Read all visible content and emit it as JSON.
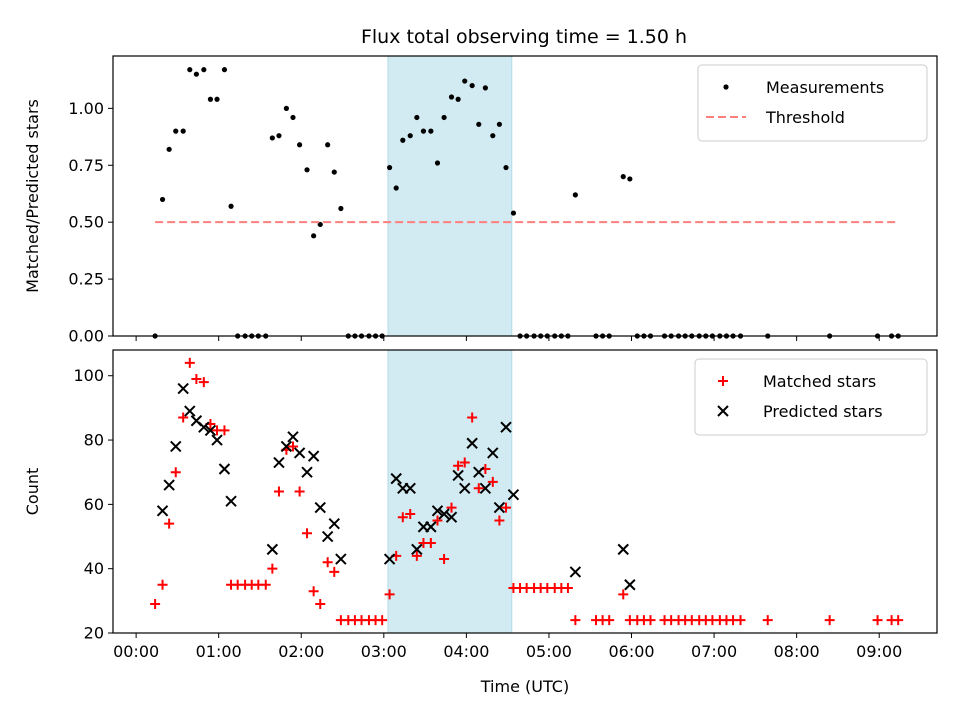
{
  "chart_data": [
    {
      "type": "scatter",
      "title": "Flux total observing time = 1.50 h",
      "xlabel": "",
      "ylabel": "Matched/Predicted stars",
      "xlim": [
        -0.28,
        9.7
      ],
      "ylim": [
        0,
        1.23
      ],
      "yticks": [
        0,
        0.25,
        0.5,
        0.75,
        1.0
      ],
      "ytick_labels": [
        "0.00",
        "0.25",
        "0.50",
        "0.75",
        "1.00"
      ],
      "legend_position": "top-right",
      "highlight_span": {
        "x0": 3.05,
        "x1": 4.55,
        "color": "#add8e6"
      },
      "series": [
        {
          "name": "Measurements",
          "style": "dots",
          "color": "#000000",
          "x": [
            0.23,
            0.32,
            0.4,
            0.48,
            0.57,
            0.65,
            0.73,
            0.82,
            0.9,
            0.98,
            1.07,
            1.15,
            1.23,
            1.32,
            1.4,
            1.48,
            1.57,
            1.65,
            1.73,
            1.82,
            1.9,
            1.98,
            2.07,
            2.15,
            2.23,
            2.32,
            2.4,
            2.48,
            2.57,
            2.65,
            2.73,
            2.82,
            2.9,
            2.98,
            3.07,
            3.15,
            3.23,
            3.32,
            3.4,
            3.48,
            3.57,
            3.65,
            3.73,
            3.82,
            3.9,
            3.98,
            4.07,
            4.15,
            4.23,
            4.32,
            4.4,
            4.48,
            4.57,
            4.65,
            4.73,
            4.82,
            4.9,
            4.98,
            5.07,
            5.15,
            5.23,
            5.32,
            5.57,
            5.65,
            5.73,
            5.9,
            5.98,
            6.07,
            6.15,
            6.23,
            6.4,
            6.48,
            6.57,
            6.65,
            6.73,
            6.82,
            6.9,
            6.98,
            7.07,
            7.15,
            7.23,
            7.32,
            7.65,
            8.4,
            8.98,
            9.15,
            9.23
          ],
          "y": [
            0,
            0.6,
            0.82,
            0.9,
            0.9,
            1.17,
            1.15,
            1.17,
            1.04,
            1.04,
            1.17,
            0.57,
            0,
            0,
            0,
            0,
            0,
            0.87,
            0.88,
            1,
            0.96,
            0.84,
            0.73,
            0.44,
            0.49,
            0.84,
            0.72,
            0.56,
            0,
            0,
            0,
            0,
            0,
            0,
            0.74,
            0.65,
            0.86,
            0.88,
            0.96,
            0.9,
            0.9,
            0.76,
            0.96,
            1.05,
            1.04,
            1.12,
            1.1,
            0.93,
            1.09,
            0.88,
            0.93,
            0.74,
            0.54,
            0,
            0,
            0,
            0,
            0,
            0,
            0,
            0,
            0.62,
            0,
            0,
            0,
            0.7,
            0.69,
            0,
            0,
            0,
            0,
            0,
            0,
            0,
            0,
            0,
            0,
            0,
            0,
            0,
            0,
            0,
            0,
            0,
            0,
            0,
            0
          ]
        },
        {
          "name": "Threshold",
          "style": "dashed",
          "color": "#ff7f7f",
          "x": [
            0.23,
            9.23
          ],
          "y": [
            0.5,
            0.5
          ]
        }
      ]
    },
    {
      "type": "scatter",
      "title": "",
      "xlabel": "Time (UTC)",
      "ylabel": "Count",
      "xlim": [
        -0.28,
        9.7
      ],
      "ylim": [
        20,
        108
      ],
      "yticks": [
        20,
        40,
        60,
        80,
        100
      ],
      "ytick_labels": [
        "20",
        "40",
        "60",
        "80",
        "100"
      ],
      "xticks": [
        0,
        1,
        2,
        3,
        4,
        5,
        6,
        7,
        8,
        9
      ],
      "xtick_labels": [
        "00:00",
        "01:00",
        "02:00",
        "03:00",
        "04:00",
        "05:00",
        "06:00",
        "07:00",
        "08:00",
        "09:00"
      ],
      "legend_position": "top-right",
      "highlight_span": {
        "x0": 3.05,
        "x1": 4.55,
        "color": "#add8e6"
      },
      "series": [
        {
          "name": "Matched stars",
          "style": "plus",
          "color": "#ff0000",
          "x": [
            0.23,
            0.32,
            0.4,
            0.48,
            0.57,
            0.65,
            0.73,
            0.82,
            0.9,
            0.98,
            1.07,
            1.15,
            1.23,
            1.32,
            1.4,
            1.48,
            1.57,
            1.65,
            1.73,
            1.82,
            1.9,
            1.98,
            2.07,
            2.15,
            2.23,
            2.32,
            2.4,
            2.48,
            2.57,
            2.65,
            2.73,
            2.82,
            2.9,
            2.98,
            3.07,
            3.15,
            3.23,
            3.32,
            3.4,
            3.48,
            3.57,
            3.65,
            3.73,
            3.82,
            3.9,
            3.98,
            4.07,
            4.15,
            4.23,
            4.32,
            4.4,
            4.48,
            4.57,
            4.65,
            4.73,
            4.82,
            4.9,
            4.98,
            5.07,
            5.15,
            5.23,
            5.32,
            5.57,
            5.65,
            5.73,
            5.9,
            5.98,
            6.07,
            6.15,
            6.23,
            6.4,
            6.48,
            6.57,
            6.65,
            6.73,
            6.82,
            6.9,
            6.98,
            7.07,
            7.15,
            7.23,
            7.32,
            7.65,
            8.4,
            8.98,
            9.15,
            9.23
          ],
          "y": [
            29,
            35,
            54,
            70,
            87,
            104,
            99,
            98,
            85,
            83,
            83,
            35,
            35,
            35,
            35,
            35,
            35,
            40,
            64,
            77,
            78,
            64,
            51,
            33,
            29,
            42,
            39,
            24,
            24,
            24,
            24,
            24,
            24,
            24,
            32,
            44,
            56,
            57,
            44,
            48,
            48,
            55,
            43,
            59,
            72,
            73,
            87,
            65,
            71,
            67,
            55,
            59,
            34,
            34,
            34,
            34,
            34,
            34,
            34,
            34,
            34,
            24,
            24,
            24,
            24,
            32,
            24,
            24,
            24,
            24,
            24,
            24,
            24,
            24,
            24,
            24,
            24,
            24,
            24,
            24,
            24,
            24,
            24,
            24,
            24,
            24,
            24
          ]
        },
        {
          "name": "Predicted stars",
          "style": "x",
          "color": "#000000",
          "x": [
            0.32,
            0.4,
            0.48,
            0.57,
            0.65,
            0.73,
            0.82,
            0.9,
            0.98,
            1.07,
            1.15,
            1.65,
            1.73,
            1.82,
            1.9,
            1.98,
            2.07,
            2.15,
            2.23,
            2.32,
            2.4,
            2.48,
            3.07,
            3.15,
            3.23,
            3.32,
            3.4,
            3.48,
            3.57,
            3.65,
            3.73,
            3.82,
            3.9,
            3.98,
            4.07,
            4.15,
            4.23,
            4.32,
            4.4,
            4.48,
            4.57,
            5.32,
            5.9,
            5.98
          ],
          "y": [
            58,
            66,
            78,
            96,
            89,
            86,
            84,
            83,
            80,
            71,
            61,
            46,
            73,
            78,
            81,
            76,
            70,
            75,
            59,
            50,
            54,
            43,
            43,
            68,
            65,
            65,
            46,
            53,
            53,
            58,
            57,
            56,
            69,
            65,
            79,
            70,
            65,
            76,
            59,
            84,
            63,
            39,
            46,
            35
          ]
        }
      ]
    }
  ]
}
